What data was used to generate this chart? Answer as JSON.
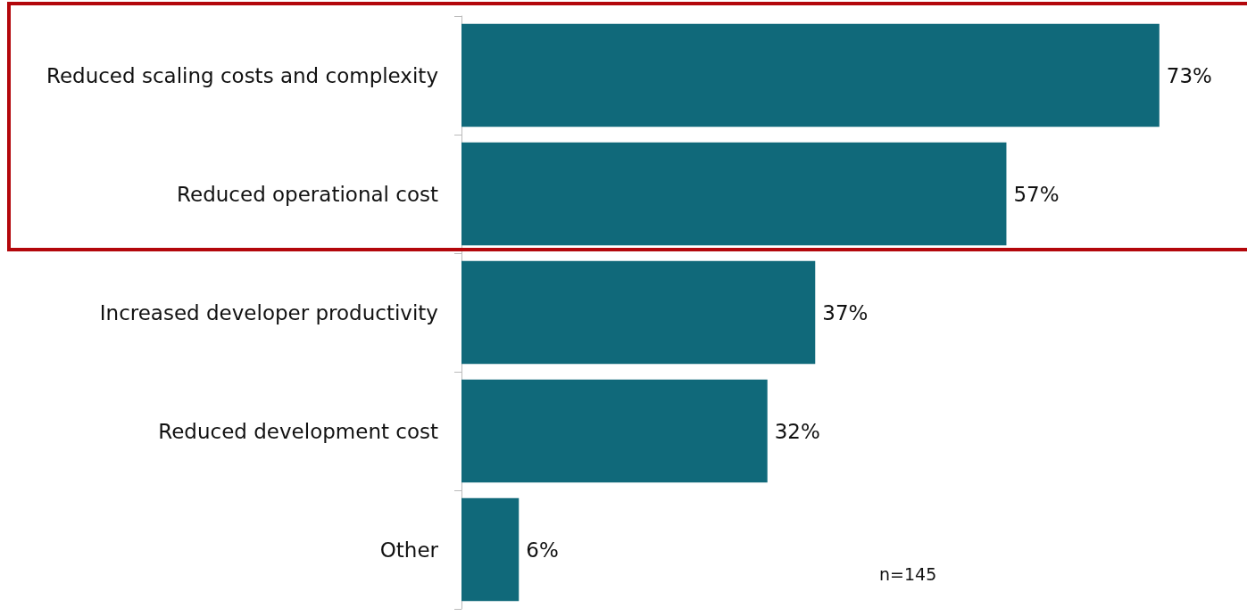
{
  "chart_data": {
    "type": "bar",
    "orientation": "horizontal",
    "categories": [
      "Reduced scaling costs and complexity",
      "Reduced operational cost",
      "Increased developer productivity",
      "Reduced development cost",
      "Other"
    ],
    "values": [
      73,
      57,
      37,
      32,
      6
    ],
    "value_labels": [
      "73%",
      "57%",
      "37%",
      "32%",
      "6%"
    ],
    "color": "#10697a",
    "annotations": [
      "n=145"
    ]
  }
}
